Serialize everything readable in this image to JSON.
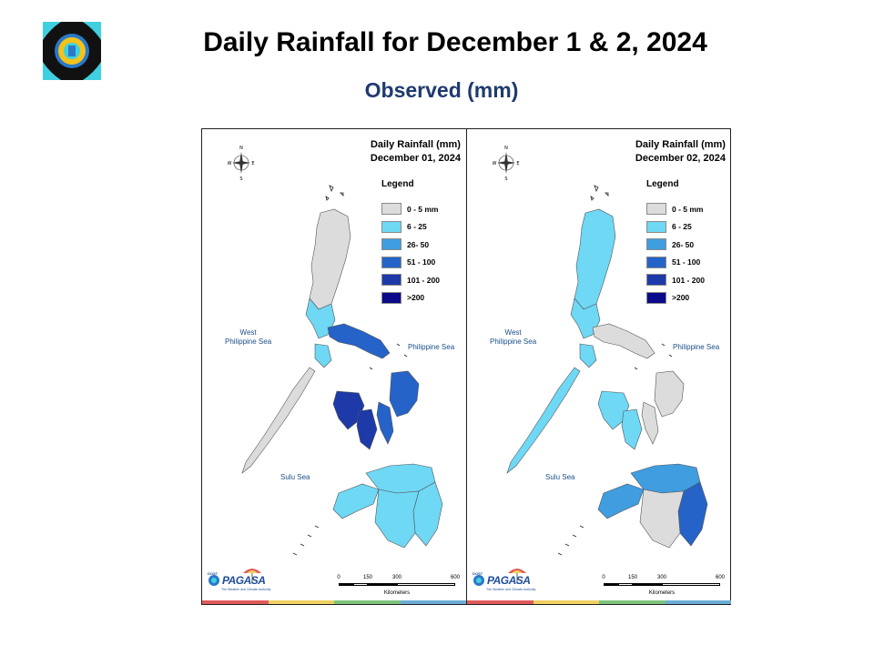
{
  "slide": {
    "title": "Daily Rainfall for December 1 & 2, 2024",
    "subtitle": "Observed (mm)"
  },
  "legend": {
    "title": "Legend",
    "classes": [
      {
        "label": "0 - 5 mm",
        "color": "#dcdcdc"
      },
      {
        "label": "6 - 25",
        "color": "#6ed8f5"
      },
      {
        "label": "26- 50",
        "color": "#3f9de0"
      },
      {
        "label": "51 - 100",
        "color": "#2563c8"
      },
      {
        "label": "101 - 200",
        "color": "#1d3aa8"
      },
      {
        "label": ">200",
        "color": "#0a0a8a"
      }
    ]
  },
  "panels": [
    {
      "title_line1": "Daily Rainfall (mm)",
      "title_line2": "December 01, 2024",
      "region_levels": {
        "north": 0,
        "central_luzon": 1,
        "bicol": 3,
        "visayas_west": 4,
        "visayas_east": 3,
        "mindanao_north": 1,
        "mindanao_east": 1,
        "mindanao_south": 1
      }
    },
    {
      "title_line1": "Daily Rainfall (mm)",
      "title_line2": "December 02, 2024",
      "region_levels": {
        "north": 1,
        "central_luzon": 1,
        "bicol": 0,
        "visayas_west": 1,
        "visayas_east": 0,
        "mindanao_north": 2,
        "mindanao_east": 3,
        "mindanao_south": 0
      }
    }
  ],
  "labels": {
    "west_sea_line1": "West",
    "west_sea_line2": "Philippine Sea",
    "philippine_sea": "Philippine Sea",
    "sulu_sea": "Sulu Sea"
  },
  "compass": {
    "n": "N",
    "s": "S",
    "e": "E",
    "w": "W"
  },
  "scale": {
    "ticks": [
      "0",
      "150",
      "300",
      "600"
    ],
    "unit": "Kilometers"
  },
  "brand": {
    "small": "DOST",
    "name": "PAGASA",
    "tagline": "The Weather and Climate Authority"
  },
  "colors": {
    "strip": [
      "#e05a5a",
      "#f0d060",
      "#7cc47c",
      "#6aaed6"
    ],
    "subtitle": "#1f3a70",
    "sea_label": "#1a4f8a"
  }
}
